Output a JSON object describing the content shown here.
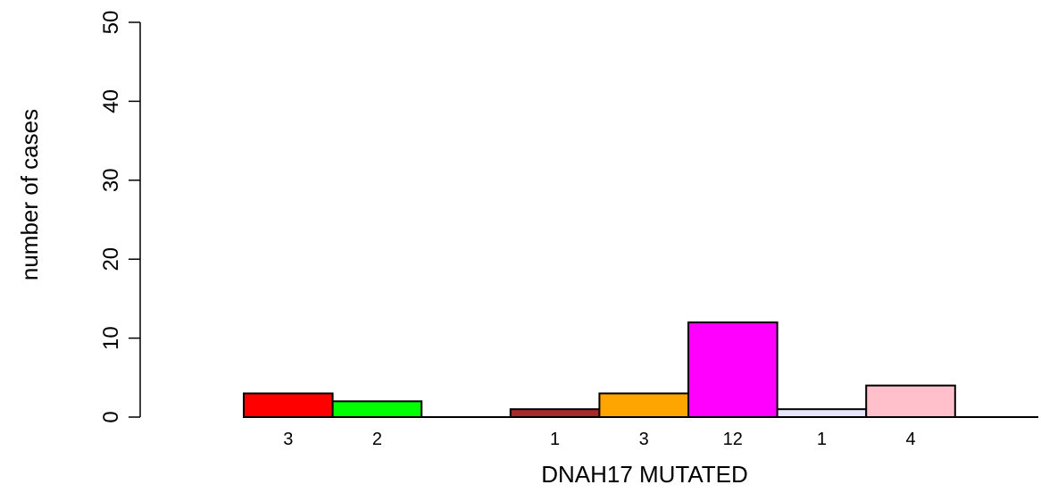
{
  "chart_data": {
    "type": "bar",
    "title": "",
    "xlabel": "DNAH17 MUTATED",
    "ylabel": "number of cases",
    "ylim": [
      0,
      50
    ],
    "yticks": [
      0,
      10,
      20,
      30,
      40,
      50
    ],
    "grid": false,
    "bars": [
      {
        "value": 3,
        "label": "3",
        "color": "#ff0000"
      },
      {
        "value": 2,
        "label": "2",
        "color": "#00ff00"
      },
      {
        "value": null,
        "label": "",
        "color": null
      },
      {
        "value": 1,
        "label": "1",
        "color": "#a52a2a"
      },
      {
        "value": 3,
        "label": "3",
        "color": "#ffa500"
      },
      {
        "value": 12,
        "label": "12",
        "color": "#ff00ff"
      },
      {
        "value": 1,
        "label": "1",
        "color": "#e6e6fa"
      },
      {
        "value": 4,
        "label": "4",
        "color": "#ffc0cb"
      }
    ]
  }
}
